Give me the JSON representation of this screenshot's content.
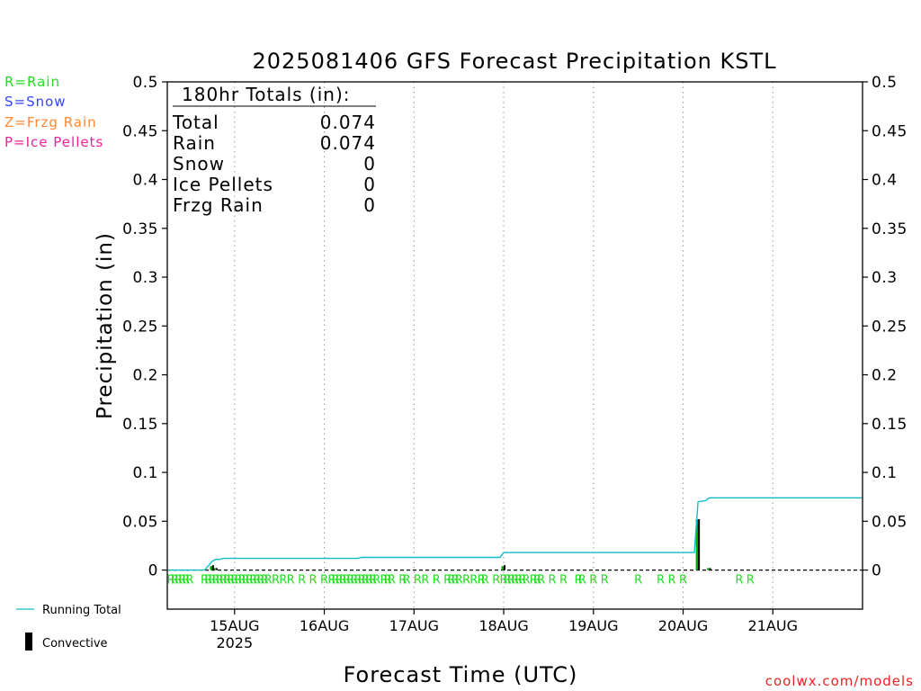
{
  "title": "2025081406 GFS Forecast Precipitation KSTL",
  "legend_types": [
    {
      "label": "R=Rain",
      "color": "#22dd22"
    },
    {
      "label": "S=Snow",
      "color": "#3344ff"
    },
    {
      "label": "Z=Frzg Rain",
      "color": "#ff8833"
    },
    {
      "label": "P=Ice Pellets",
      "color": "#ee2299"
    }
  ],
  "totals_box": {
    "heading": "180hr Totals (in):",
    "rows": [
      {
        "label": "Total",
        "value": "0.074"
      },
      {
        "label": "Rain",
        "value": "0.074"
      },
      {
        "label": "Snow",
        "value": "0"
      },
      {
        "label": "Ice Pellets",
        "value": "0"
      },
      {
        "label": "Frzg Rain",
        "value": "0"
      }
    ]
  },
  "bottom_legend": {
    "running_total": "Running Total",
    "convective": "Convective"
  },
  "credit": "coolwx.com/models",
  "colors": {
    "running_total": "#11bbcc",
    "convective": "#000000",
    "rain_bar": "#00aa00",
    "rain_marker": "#22dd22",
    "grid": "#999999"
  },
  "chart_data": {
    "type": "bar",
    "title": "2025081406 GFS Forecast Precipitation KSTL",
    "xlabel": "Forecast Time (UTC)",
    "ylabel": "Precipitation (in)",
    "xlim_hours_since_start": [
      0,
      186
    ],
    "ylim": [
      -0.04,
      0.5
    ],
    "y_ticks": [
      0,
      0.05,
      0.1,
      0.15,
      0.2,
      0.25,
      0.3,
      0.35,
      0.4,
      0.45,
      0.5
    ],
    "y_tick_labels": [
      "0",
      "0.05",
      "0.1",
      "0.15",
      "0.2",
      "0.25",
      "0.3",
      "0.35",
      "0.4",
      "0.45",
      "0.5"
    ],
    "x_ticks": [
      {
        "hour": 18,
        "label": "15AUG",
        "sublabel": "2025"
      },
      {
        "hour": 42,
        "label": "16AUG"
      },
      {
        "hour": 66,
        "label": "17AUG"
      },
      {
        "hour": 90,
        "label": "18AUG"
      },
      {
        "hour": 114,
        "label": "19AUG"
      },
      {
        "hour": 138,
        "label": "20AUG"
      },
      {
        "hour": 162,
        "label": "21AUG"
      }
    ],
    "grid": "vertical dotted at x ticks",
    "series": [
      {
        "name": "Running Total",
        "style": "line",
        "points": [
          [
            0,
            0
          ],
          [
            10,
            0
          ],
          [
            12,
            0.009
          ],
          [
            13,
            0.011
          ],
          [
            14,
            0.011
          ],
          [
            15,
            0.012
          ],
          [
            51,
            0.012
          ],
          [
            52,
            0.013
          ],
          [
            89,
            0.013
          ],
          [
            90,
            0.018
          ],
          [
            141,
            0.018
          ],
          [
            142,
            0.07
          ],
          [
            144,
            0.071
          ],
          [
            145,
            0.074
          ],
          [
            186,
            0.074
          ]
        ]
      },
      {
        "name": "Rain",
        "style": "bar",
        "bars": [
          [
            12,
            0.004
          ],
          [
            13,
            0.002
          ],
          [
            90,
            0.004
          ],
          [
            142,
            0.052
          ],
          [
            145,
            0.002
          ]
        ]
      },
      {
        "name": "Convective",
        "style": "bar",
        "bars": [
          [
            12,
            0.005
          ],
          [
            13,
            0.002
          ],
          [
            90,
            0.005
          ],
          [
            142,
            0.052
          ],
          [
            145,
            0.002
          ]
        ]
      }
    ],
    "ptype_markers": {
      "symbol": "R",
      "hours": [
        1,
        2,
        3,
        4,
        5,
        6,
        10,
        11,
        12,
        13,
        14,
        15,
        16,
        17,
        18,
        19,
        20,
        21,
        22,
        23,
        24,
        25,
        26,
        27,
        29,
        31,
        33,
        36,
        39,
        42,
        44,
        45,
        46,
        47,
        48,
        49,
        50,
        51,
        52,
        53,
        54,
        55,
        56,
        58,
        59,
        60,
        63,
        64,
        67,
        69,
        72,
        75,
        76,
        77,
        78,
        80,
        82,
        84,
        85,
        88,
        90,
        91,
        92,
        93,
        94,
        95,
        96,
        98,
        99,
        100,
        103,
        106,
        110,
        111,
        114,
        117,
        126,
        132,
        135,
        138,
        153,
        156
      ],
      "color": "#22dd22"
    }
  }
}
